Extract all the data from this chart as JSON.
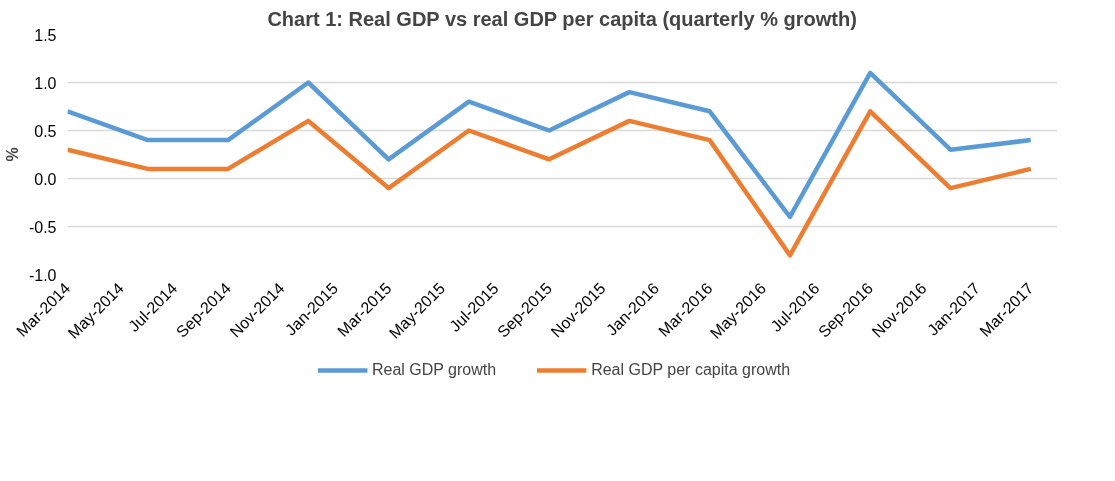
{
  "chart_data": {
    "type": "line",
    "title": "Chart 1: Real GDP vs real GDP per capita (quarterly % growth)",
    "ylabel": "%",
    "x": [
      "2014-03",
      "2014-06",
      "2014-09",
      "2014-12",
      "2015-03",
      "2015-06",
      "2015-09",
      "2015-12",
      "2016-03",
      "2016-06",
      "2016-09",
      "2016-12",
      "2017-03"
    ],
    "series": [
      {
        "name": "Real GDP growth",
        "color": "#5b9bd5",
        "values": [
          0.7,
          0.4,
          0.4,
          1.0,
          0.2,
          0.8,
          0.5,
          0.9,
          0.7,
          -0.4,
          1.1,
          0.3,
          0.4
        ]
      },
      {
        "name": "Real GDP per capita growth",
        "color": "#ed7d31",
        "values": [
          0.3,
          0.1,
          0.1,
          0.6,
          -0.1,
          0.5,
          0.2,
          0.6,
          0.4,
          -0.8,
          0.7,
          -0.1,
          0.1
        ]
      }
    ],
    "xlim": [
      "2014-03",
      "2017-04"
    ],
    "xticks": [
      {
        "value": "2014-03",
        "label": "Mar-2014"
      },
      {
        "value": "2014-05",
        "label": "May-2014"
      },
      {
        "value": "2014-07",
        "label": "Jul-2014"
      },
      {
        "value": "2014-09",
        "label": "Sep-2014"
      },
      {
        "value": "2014-11",
        "label": "Nov-2014"
      },
      {
        "value": "2015-01",
        "label": "Jan-2015"
      },
      {
        "value": "2015-03",
        "label": "Mar-2015"
      },
      {
        "value": "2015-05",
        "label": "May-2015"
      },
      {
        "value": "2015-07",
        "label": "Jul-2015"
      },
      {
        "value": "2015-09",
        "label": "Sep-2015"
      },
      {
        "value": "2015-11",
        "label": "Nov-2015"
      },
      {
        "value": "2016-01",
        "label": "Jan-2016"
      },
      {
        "value": "2016-03",
        "label": "Mar-2016"
      },
      {
        "value": "2016-05",
        "label": "May-2016"
      },
      {
        "value": "2016-07",
        "label": "Jul-2016"
      },
      {
        "value": "2016-09",
        "label": "Sep-2016"
      },
      {
        "value": "2016-11",
        "label": "Nov-2016"
      },
      {
        "value": "2017-01",
        "label": "Jan-2017"
      },
      {
        "value": "2017-03",
        "label": "Mar-2017"
      }
    ],
    "ylim": [
      -1.0,
      1.5
    ],
    "yticks": [
      {
        "value": -1.0,
        "label": "-1.0"
      },
      {
        "value": -0.5,
        "label": "-0.5"
      },
      {
        "value": 0.0,
        "label": "0.0"
      },
      {
        "value": 0.5,
        "label": "0.5"
      },
      {
        "value": 1.0,
        "label": "1.0"
      },
      {
        "value": 1.5,
        "label": "1.5"
      }
    ],
    "grid": "y",
    "legend": "bottom",
    "marker": "none",
    "line_style": "solid"
  }
}
